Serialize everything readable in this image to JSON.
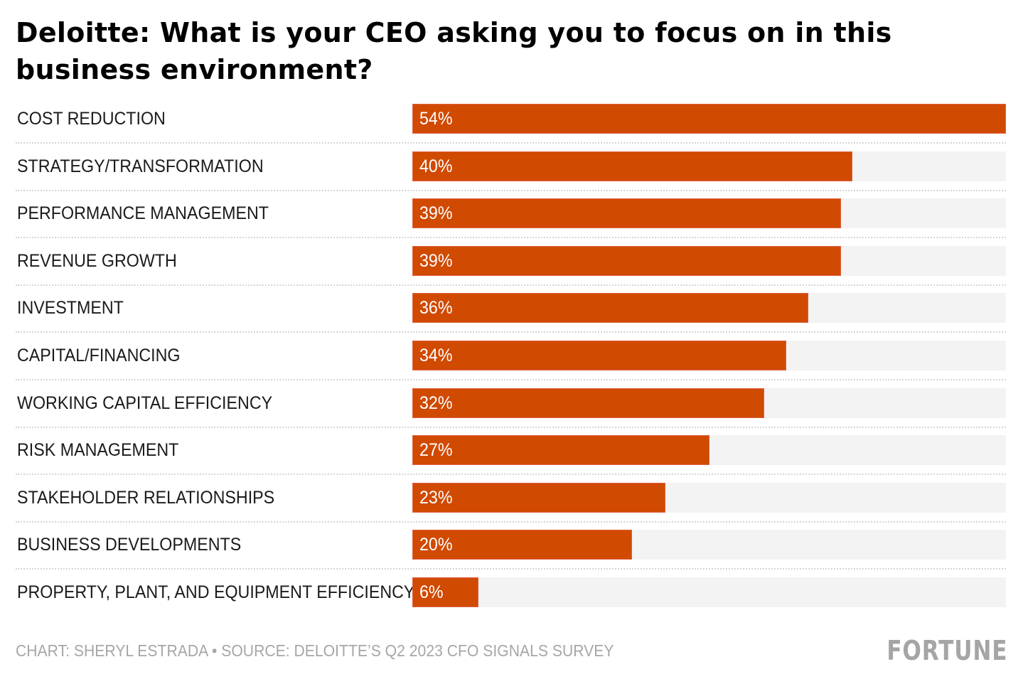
{
  "chart_data": {
    "type": "bar",
    "orientation": "horizontal",
    "title": "Deloitte: What is your CEO asking you to focus on in this business environment?",
    "xlabel": "",
    "ylabel": "",
    "xlim": [
      0,
      54
    ],
    "grid": false,
    "categories": [
      "COST REDUCTION",
      "STRATEGY/TRANSFORMATION",
      "PERFORMANCE MANAGEMENT",
      "REVENUE GROWTH",
      "INVESTMENT",
      "CAPITAL/FINANCING",
      "WORKING CAPITAL EFFICIENCY",
      "RISK MANAGEMENT",
      "STAKEHOLDER RELATIONSHIPS",
      "BUSINESS DEVELOPMENTS",
      "PROPERTY, PLANT, AND EQUIPMENT EFFICIENCY"
    ],
    "values": [
      54,
      40,
      39,
      39,
      36,
      34,
      32,
      27,
      23,
      20,
      6
    ],
    "value_labels": [
      "54%",
      "40%",
      "39%",
      "39%",
      "36%",
      "34%",
      "32%",
      "27%",
      "23%",
      "20%",
      "6%"
    ],
    "unit": "%",
    "colors": {
      "bar": "#d04a02",
      "track": "#f3f3f3",
      "separator": "#d6d6d6"
    }
  },
  "footer": {
    "credit": "CHART: SHERYL ESTRADA • SOURCE: DELOITTE’S Q2 2023 CFO SIGNALS SURVEY",
    "logo": "FORTUNE"
  }
}
